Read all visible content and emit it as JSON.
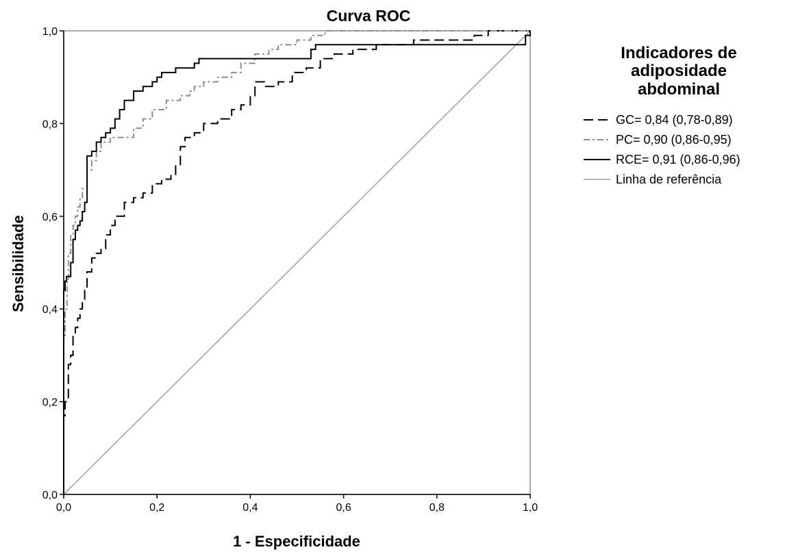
{
  "chart_data": {
    "type": "line",
    "title": "Curva ROC",
    "xlabel": "1 - Especificidade",
    "ylabel": "Sensibilidade",
    "xlim": [
      0,
      1
    ],
    "ylim": [
      0,
      1
    ],
    "x_ticks": [
      "0,0",
      "0,2",
      "0,4",
      "0,6",
      "0,8",
      "1,0"
    ],
    "y_ticks": [
      "0,0",
      "0,2",
      "0,4",
      "0,6",
      "0,8",
      "1,0"
    ],
    "grid": false,
    "legend": {
      "title": [
        "Indicadores de",
        "adiposidade",
        "abdominal"
      ],
      "placement": "right"
    },
    "series": [
      {
        "name": "GC= 0,84 (0,78-0,89)",
        "style": "dash",
        "color": "#000000",
        "x": [
          0,
          0,
          0.003,
          0.003,
          0.01,
          0.01,
          0.015,
          0.015,
          0.02,
          0.02,
          0.025,
          0.025,
          0.03,
          0.03,
          0.035,
          0.035,
          0.04,
          0.04,
          0.045,
          0.045,
          0.05,
          0.05,
          0.06,
          0.06,
          0.07,
          0.07,
          0.08,
          0.08,
          0.09,
          0.09,
          0.1,
          0.1,
          0.11,
          0.11,
          0.13,
          0.13,
          0.15,
          0.15,
          0.17,
          0.17,
          0.19,
          0.19,
          0.21,
          0.21,
          0.23,
          0.23,
          0.24,
          0.24,
          0.25,
          0.25,
          0.26,
          0.26,
          0.28,
          0.28,
          0.3,
          0.3,
          0.33,
          0.33,
          0.36,
          0.36,
          0.38,
          0.38,
          0.4,
          0.4,
          0.41,
          0.41,
          0.43,
          0.43,
          0.46,
          0.46,
          0.49,
          0.49,
          0.52,
          0.52,
          0.55,
          0.55,
          0.58,
          0.58,
          0.62,
          0.62,
          0.67,
          0.67,
          0.75,
          0.75,
          0.88,
          0.88,
          0.91,
          0.91,
          1
        ],
        "y": [
          0,
          0.17,
          0.17,
          0.2,
          0.2,
          0.28,
          0.28,
          0.3,
          0.3,
          0.34,
          0.34,
          0.36,
          0.36,
          0.38,
          0.38,
          0.4,
          0.4,
          0.42,
          0.42,
          0.44,
          0.44,
          0.48,
          0.48,
          0.51,
          0.51,
          0.52,
          0.52,
          0.53,
          0.53,
          0.56,
          0.56,
          0.58,
          0.58,
          0.6,
          0.6,
          0.63,
          0.63,
          0.64,
          0.64,
          0.65,
          0.65,
          0.67,
          0.67,
          0.68,
          0.68,
          0.69,
          0.69,
          0.71,
          0.71,
          0.75,
          0.75,
          0.77,
          0.77,
          0.78,
          0.78,
          0.8,
          0.8,
          0.81,
          0.81,
          0.83,
          0.83,
          0.84,
          0.84,
          0.86,
          0.86,
          0.89,
          0.89,
          0.88,
          0.88,
          0.89,
          0.89,
          0.91,
          0.91,
          0.92,
          0.92,
          0.94,
          0.94,
          0.95,
          0.95,
          0.96,
          0.96,
          0.97,
          0.97,
          0.98,
          0.98,
          0.99,
          0.99,
          1,
          1
        ]
      },
      {
        "name": "PC= 0,90 (0,86-0,95)",
        "style": "dash-dot",
        "color": "#8c8c8c",
        "x": [
          0,
          0,
          0.003,
          0.003,
          0.007,
          0.007,
          0.01,
          0.01,
          0.015,
          0.015,
          0.02,
          0.02,
          0.025,
          0.025,
          0.03,
          0.03,
          0.035,
          0.035,
          0.04,
          0.04,
          0.05,
          0.05,
          0.06,
          0.06,
          0.07,
          0.07,
          0.08,
          0.08,
          0.1,
          0.1,
          0.15,
          0.15,
          0.17,
          0.17,
          0.19,
          0.19,
          0.22,
          0.22,
          0.25,
          0.25,
          0.27,
          0.27,
          0.28,
          0.28,
          0.3,
          0.3,
          0.33,
          0.33,
          0.36,
          0.36,
          0.38,
          0.38,
          0.41,
          0.41,
          0.44,
          0.44,
          0.46,
          0.46,
          0.5,
          0.5,
          0.53,
          0.53,
          0.56,
          0.56,
          0.6,
          0.6,
          0.88,
          0.88,
          1
        ],
        "y": [
          0,
          0.34,
          0.34,
          0.4,
          0.4,
          0.46,
          0.46,
          0.52,
          0.52,
          0.56,
          0.56,
          0.58,
          0.58,
          0.6,
          0.6,
          0.62,
          0.62,
          0.64,
          0.64,
          0.66,
          0.66,
          0.7,
          0.7,
          0.72,
          0.72,
          0.74,
          0.74,
          0.76,
          0.76,
          0.77,
          0.77,
          0.79,
          0.79,
          0.81,
          0.81,
          0.83,
          0.83,
          0.85,
          0.85,
          0.86,
          0.86,
          0.87,
          0.87,
          0.88,
          0.88,
          0.89,
          0.89,
          0.9,
          0.9,
          0.91,
          0.91,
          0.93,
          0.93,
          0.95,
          0.95,
          0.96,
          0.96,
          0.97,
          0.97,
          0.98,
          0.98,
          0.99,
          0.99,
          1,
          1,
          1,
          1,
          1,
          1
        ]
      },
      {
        "name": "RCE= 0,91 (0,86-0,96)",
        "style": "solid",
        "color": "#000000",
        "x": [
          0,
          0,
          0.003,
          0.003,
          0.006,
          0.006,
          0.015,
          0.015,
          0.02,
          0.02,
          0.025,
          0.025,
          0.03,
          0.03,
          0.035,
          0.035,
          0.04,
          0.04,
          0.045,
          0.045,
          0.05,
          0.05,
          0.06,
          0.06,
          0.07,
          0.07,
          0.08,
          0.08,
          0.09,
          0.09,
          0.1,
          0.1,
          0.11,
          0.11,
          0.12,
          0.12,
          0.13,
          0.13,
          0.15,
          0.15,
          0.17,
          0.17,
          0.19,
          0.19,
          0.2,
          0.2,
          0.21,
          0.21,
          0.24,
          0.24,
          0.28,
          0.28,
          0.29,
          0.29,
          0.53,
          0.53,
          0.54,
          0.54,
          0.99,
          0.99,
          1,
          1
        ],
        "y": [
          0,
          0.44,
          0.44,
          0.46,
          0.46,
          0.47,
          0.47,
          0.5,
          0.5,
          0.55,
          0.55,
          0.57,
          0.57,
          0.58,
          0.58,
          0.59,
          0.59,
          0.61,
          0.61,
          0.63,
          0.63,
          0.73,
          0.73,
          0.74,
          0.74,
          0.76,
          0.76,
          0.77,
          0.77,
          0.78,
          0.78,
          0.79,
          0.79,
          0.81,
          0.81,
          0.83,
          0.83,
          0.85,
          0.85,
          0.87,
          0.87,
          0.88,
          0.88,
          0.89,
          0.89,
          0.9,
          0.9,
          0.91,
          0.91,
          0.92,
          0.92,
          0.93,
          0.93,
          0.94,
          0.94,
          0.96,
          0.96,
          0.97,
          0.97,
          0.99,
          0.99,
          1
        ]
      },
      {
        "name": "Linha de referência",
        "style": "solid",
        "color": "#b4b4b4",
        "x": [
          0,
          1
        ],
        "y": [
          0,
          1
        ]
      }
    ]
  }
}
